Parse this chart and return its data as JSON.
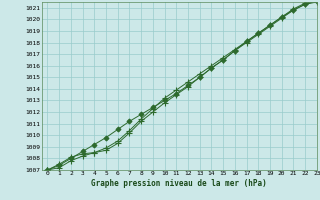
{
  "title": "Graphe pression niveau de la mer (hPa)",
  "bg_color": "#cce8e8",
  "grid_color": "#99cccc",
  "line_color": "#2d6a2d",
  "marker_color": "#2d6a2d",
  "xlim": [
    -0.5,
    23
  ],
  "ylim": [
    1007,
    1021.5
  ],
  "xticks": [
    0,
    1,
    2,
    3,
    4,
    5,
    6,
    7,
    8,
    9,
    10,
    11,
    12,
    13,
    14,
    15,
    16,
    17,
    18,
    19,
    20,
    21,
    22,
    23
  ],
  "yticks": [
    1007,
    1008,
    1009,
    1010,
    1011,
    1012,
    1013,
    1014,
    1015,
    1016,
    1017,
    1018,
    1019,
    1020,
    1021
  ],
  "series": [
    [
      1007.0,
      1007.5,
      1008.1,
      1008.4,
      1008.5,
      1008.7,
      1009.3,
      1010.2,
      1011.2,
      1012.0,
      1012.8,
      1013.5,
      1014.2,
      1015.0,
      1015.8,
      1016.5,
      1017.3,
      1018.0,
      1018.7,
      1019.4,
      1020.1,
      1020.8,
      1021.3,
      1021.5
    ],
    [
      1007.0,
      1007.4,
      1008.0,
      1008.6,
      1009.2,
      1009.8,
      1010.5,
      1011.2,
      1011.8,
      1012.4,
      1013.0,
      1013.6,
      1014.3,
      1015.0,
      1015.8,
      1016.5,
      1017.3,
      1018.1,
      1018.8,
      1019.5,
      1020.2,
      1020.8,
      1021.3,
      1021.6
    ],
    [
      1007.0,
      1007.2,
      1007.8,
      1008.2,
      1008.5,
      1008.9,
      1009.5,
      1010.4,
      1011.4,
      1012.3,
      1013.2,
      1013.9,
      1014.6,
      1015.3,
      1016.0,
      1016.7,
      1017.4,
      1018.1,
      1018.8,
      1019.5,
      1020.2,
      1020.9,
      1021.4,
      1021.6
    ]
  ]
}
